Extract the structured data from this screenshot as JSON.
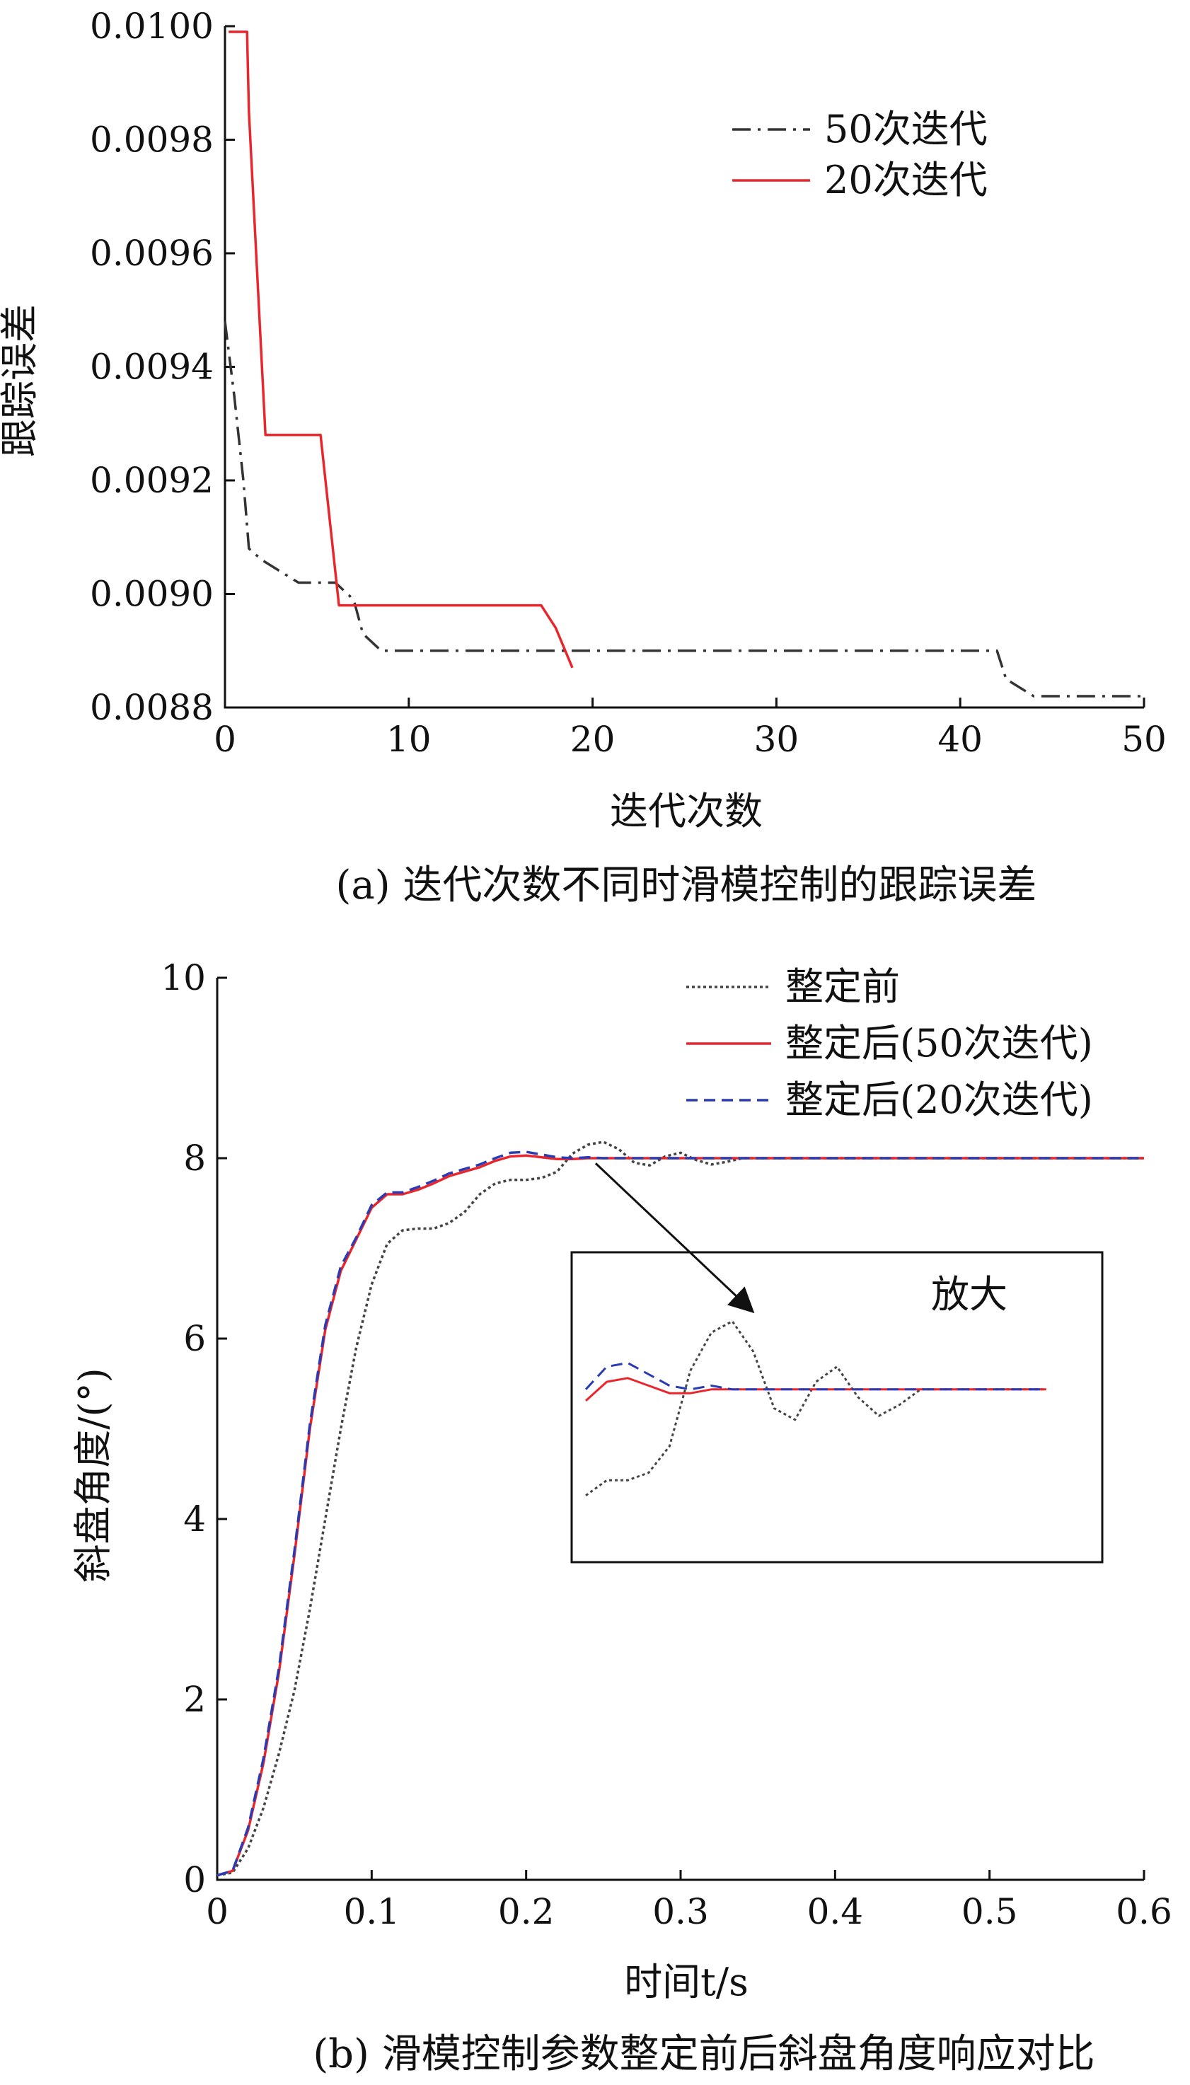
{
  "chart_data": [
    {
      "type": "line",
      "panel": "a",
      "caption": "(a) 迭代次数不同时滑模控制的跟踪误差",
      "xlabel": "迭代次数",
      "ylabel": "跟踪误差",
      "xlim": [
        0,
        50
      ],
      "ylim": [
        0.0088,
        0.01
      ],
      "x_ticks": [
        0,
        10,
        20,
        30,
        40,
        50
      ],
      "y_ticks": [
        0.0088,
        0.009,
        0.0092,
        0.0094,
        0.0096,
        0.0098,
        0.01
      ],
      "x_tick_labels": [
        "0",
        "10",
        "20",
        "30",
        "40",
        "50"
      ],
      "y_tick_labels": [
        "0.0088",
        "0.0090",
        "0.0092",
        "0.0094",
        "0.0096",
        "0.0098",
        "0.0100"
      ],
      "grid": false,
      "legend_position": "top-right",
      "series": [
        {
          "name": "50次迭代",
          "color": "#333333",
          "style": "dashdot",
          "x": [
            0,
            0.5,
            1,
            1.3,
            2,
            3,
            4,
            5,
            6,
            7,
            7.5,
            8.5,
            10,
            20,
            30,
            40,
            42,
            42.5,
            44,
            45,
            50
          ],
          "y": [
            0.00948,
            0.00935,
            0.0092,
            0.00908,
            0.00906,
            0.00904,
            0.00902,
            0.00902,
            0.00902,
            0.00899,
            0.00893,
            0.0089,
            0.0089,
            0.0089,
            0.0089,
            0.0089,
            0.0089,
            0.00885,
            0.00882,
            0.00882,
            0.00882
          ]
        },
        {
          "name": "20次迭代",
          "color": "#e8262b",
          "style": "solid",
          "x": [
            0.2,
            1.2,
            1.3,
            2.2,
            5.2,
            6.2,
            7,
            17.2,
            18,
            18.9
          ],
          "y": [
            0.00999,
            0.00999,
            0.00985,
            0.00928,
            0.00928,
            0.00898,
            0.00898,
            0.00898,
            0.00894,
            0.00887
          ]
        }
      ]
    },
    {
      "type": "line",
      "panel": "b",
      "caption": "(b) 滑模控制参数整定前后斜盘角度响应对比",
      "xlabel": "时间t/s",
      "ylabel": "斜盘角度/(°)",
      "xlim": [
        0,
        0.6
      ],
      "ylim": [
        0,
        10
      ],
      "x_ticks": [
        0,
        0.1,
        0.2,
        0.3,
        0.4,
        0.5,
        0.6
      ],
      "y_ticks": [
        0,
        2,
        4,
        6,
        8,
        10
      ],
      "x_tick_labels": [
        "0",
        "0.1",
        "0.2",
        "0.3",
        "0.4",
        "0.5",
        "0.6"
      ],
      "y_tick_labels": [
        "0",
        "2",
        "4",
        "6",
        "8",
        "10"
      ],
      "grid": false,
      "legend_position": "top-right",
      "series": [
        {
          "name": "整定前",
          "color": "#444444",
          "style": "dotted",
          "x": [
            0,
            0.01,
            0.02,
            0.03,
            0.04,
            0.05,
            0.06,
            0.07,
            0.08,
            0.09,
            0.1,
            0.11,
            0.12,
            0.13,
            0.14,
            0.15,
            0.16,
            0.17,
            0.18,
            0.19,
            0.2,
            0.21,
            0.22,
            0.23,
            0.24,
            0.25,
            0.26,
            0.27,
            0.28,
            0.29,
            0.3,
            0.31,
            0.32,
            0.33,
            0.34,
            0.35,
            0.4,
            0.5,
            0.6
          ],
          "y": [
            0.05,
            0.08,
            0.35,
            0.8,
            1.4,
            2.1,
            3.0,
            4.0,
            5.0,
            5.9,
            6.6,
            7.05,
            7.2,
            7.22,
            7.22,
            7.28,
            7.4,
            7.6,
            7.72,
            7.76,
            7.76,
            7.78,
            7.85,
            8.05,
            8.15,
            8.18,
            8.1,
            7.95,
            7.92,
            8.02,
            8.06,
            7.98,
            7.93,
            7.96,
            8.0,
            8.0,
            8.0,
            8.0,
            8.0
          ]
        },
        {
          "name": "整定后(50次迭代)",
          "color": "#e8262b",
          "style": "solid",
          "x": [
            0,
            0.01,
            0.02,
            0.03,
            0.04,
            0.05,
            0.06,
            0.07,
            0.08,
            0.09,
            0.1,
            0.11,
            0.12,
            0.13,
            0.14,
            0.15,
            0.16,
            0.17,
            0.18,
            0.19,
            0.2,
            0.21,
            0.22,
            0.23,
            0.24,
            0.25,
            0.3,
            0.4,
            0.5,
            0.6
          ],
          "y": [
            0.05,
            0.1,
            0.55,
            1.3,
            2.3,
            3.6,
            5.0,
            6.1,
            6.75,
            7.1,
            7.45,
            7.6,
            7.6,
            7.65,
            7.72,
            7.8,
            7.85,
            7.9,
            7.97,
            8.02,
            8.03,
            8.01,
            7.99,
            7.99,
            8.0,
            8.0,
            8.0,
            8.0,
            8.0,
            8.0
          ]
        },
        {
          "name": "整定后(20次迭代)",
          "color": "#2b3bb2",
          "style": "dashed",
          "x": [
            0,
            0.01,
            0.02,
            0.03,
            0.04,
            0.05,
            0.06,
            0.07,
            0.08,
            0.09,
            0.1,
            0.11,
            0.12,
            0.13,
            0.14,
            0.15,
            0.16,
            0.17,
            0.18,
            0.19,
            0.2,
            0.21,
            0.22,
            0.23,
            0.24,
            0.25,
            0.3,
            0.4,
            0.5,
            0.6
          ],
          "y": [
            0.05,
            0.1,
            0.58,
            1.35,
            2.35,
            3.65,
            5.05,
            6.15,
            6.8,
            7.12,
            7.48,
            7.62,
            7.62,
            7.68,
            7.75,
            7.83,
            7.88,
            7.93,
            8.0,
            8.06,
            8.07,
            8.04,
            8.01,
            8.0,
            8.01,
            8.0,
            8.0,
            8.0,
            8.0,
            8.0
          ]
        }
      ],
      "inset": {
        "label": "放大",
        "x_range": [
          0.18,
          0.42
        ],
        "y_range": [
          7.6,
          8.25
        ]
      }
    }
  ]
}
